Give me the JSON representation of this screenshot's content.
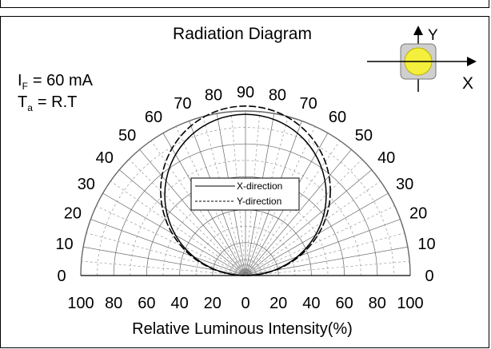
{
  "chart_data": {
    "type": "polar-radiation",
    "title": "Radiation Diagram",
    "conditions": {
      "if_prefix": "I",
      "if_sub": "F",
      "if_value": "= 60 mA",
      "ta_prefix": "T",
      "ta_sub": "a",
      "ta_value": "= R.T"
    },
    "angle_labels_left": [
      "0",
      "10",
      "20",
      "30",
      "40",
      "50",
      "60",
      "70",
      "80"
    ],
    "angle_label_top": "90",
    "angle_labels_right": [
      "80",
      "70",
      "60",
      "50",
      "40",
      "30",
      "20",
      "10",
      "0"
    ],
    "intensity_ticks": [
      "100",
      "80",
      "60",
      "40",
      "20",
      "0",
      "20",
      "40",
      "60",
      "80",
      "100"
    ],
    "xlabel": "Relative Luminous Intensity(%)",
    "radial_range": [
      0,
      100
    ],
    "angle_range_deg": [
      0,
      180
    ],
    "legend": {
      "placement": "center",
      "entries": [
        {
          "label": "X-direction",
          "style": "solid"
        },
        {
          "label": "Y-direction",
          "style": "dashed"
        }
      ]
    },
    "series": [
      {
        "name": "X-direction",
        "shape": "lambertian-circle",
        "peak_intensity": 100,
        "diameter_percent": 98
      },
      {
        "name": "Y-direction",
        "shape": "lambertian-circle",
        "peak_intensity": 100,
        "diameter_percent": 103
      }
    ],
    "grid": true
  },
  "axis_icon": {
    "x_label": "X",
    "y_label": "Y",
    "led_color": "#f4ee3c"
  }
}
